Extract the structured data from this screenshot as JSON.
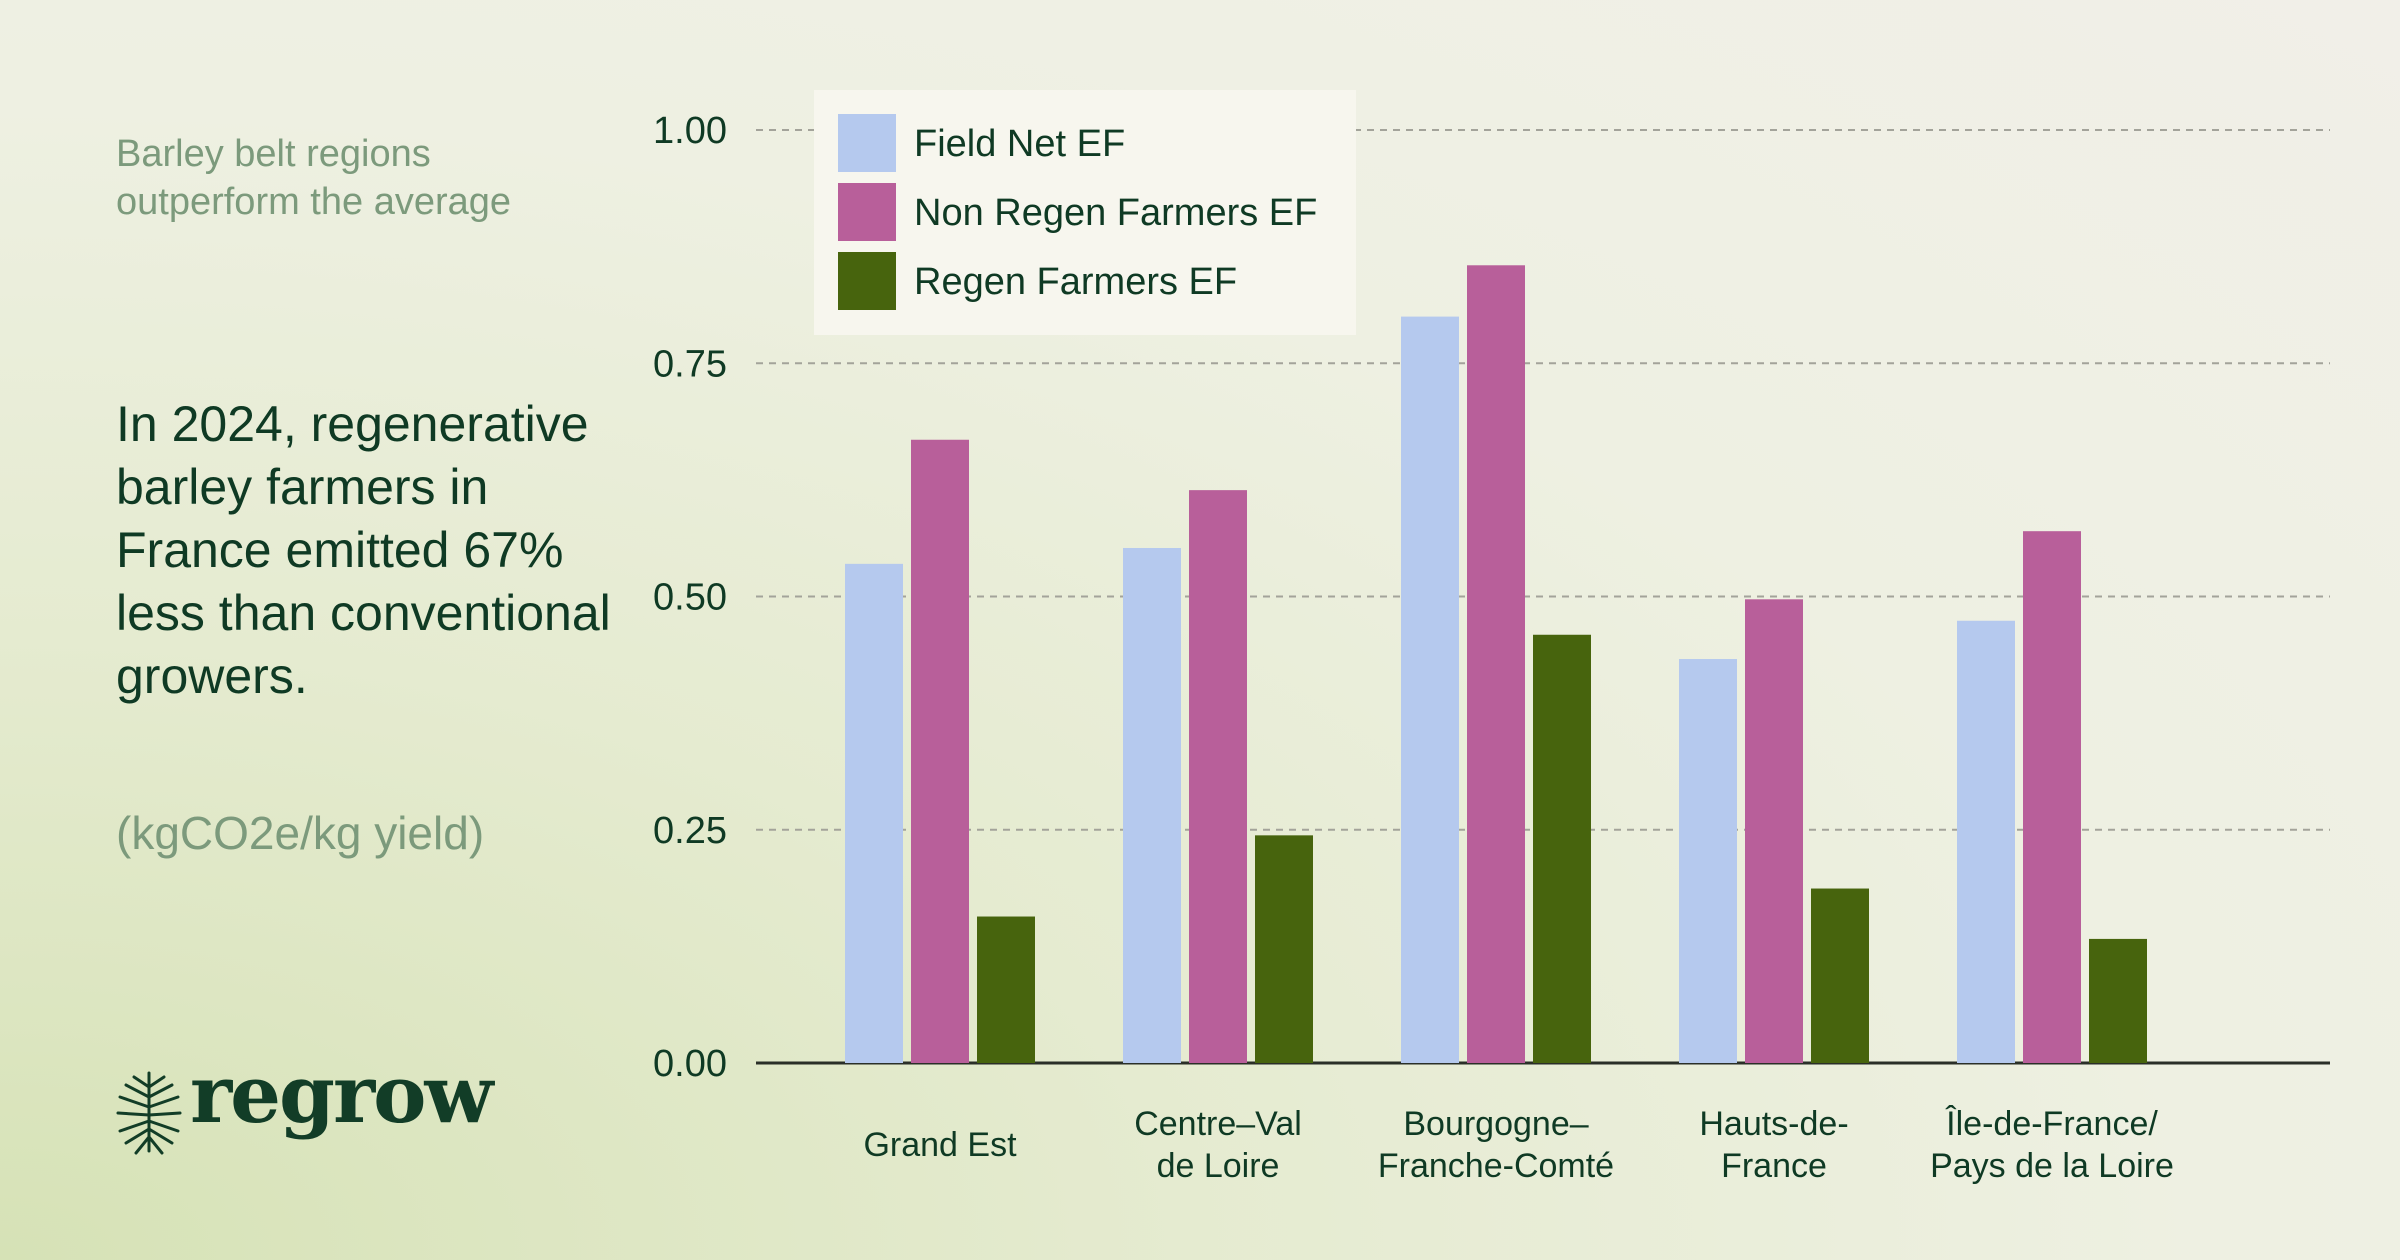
{
  "subtitle": "Barley belt regions\noutperform the average",
  "headline": "In 2024, regenerative barley farmers in France emitted 67% less than conventional growers.",
  "unit_note": "(kgCO2e/kg yield)",
  "brand": {
    "name": "regrow",
    "icon": "tree-roots-icon"
  },
  "colors": {
    "field_net": "#b5c9ee",
    "non_regen": "#b85f9a",
    "regen": "#47640d",
    "grid": "#a3a39a",
    "text_dark": "#0f3a24",
    "text_muted": "#7c9a7c"
  },
  "chart_data": {
    "type": "bar",
    "categories": [
      [
        "Grand Est"
      ],
      [
        "Centre–Val",
        "de Loire"
      ],
      [
        "Bourgogne–",
        "Franche-Comté"
      ],
      [
        "Hauts-de-",
        "France"
      ],
      [
        "Île-de-France/",
        "Pays de la Loire"
      ]
    ],
    "series": [
      {
        "name": "Field Net EF",
        "color": "#b5c9ee",
        "values": [
          0.535,
          0.552,
          0.8,
          0.433,
          0.474
        ]
      },
      {
        "name": "Non Regen Farmers EF",
        "color": "#b85f9a",
        "values": [
          0.668,
          0.614,
          0.855,
          0.497,
          0.57
        ]
      },
      {
        "name": "Regen Farmers EF",
        "color": "#47640d",
        "values": [
          0.157,
          0.244,
          0.459,
          0.187,
          0.133
        ]
      }
    ],
    "yticks": [
      "0.00",
      "0.25",
      "0.50",
      "0.75",
      "1.00"
    ],
    "ylim": [
      0,
      1.0
    ],
    "grid": "horizontal-dashed",
    "legend": "top-left"
  }
}
